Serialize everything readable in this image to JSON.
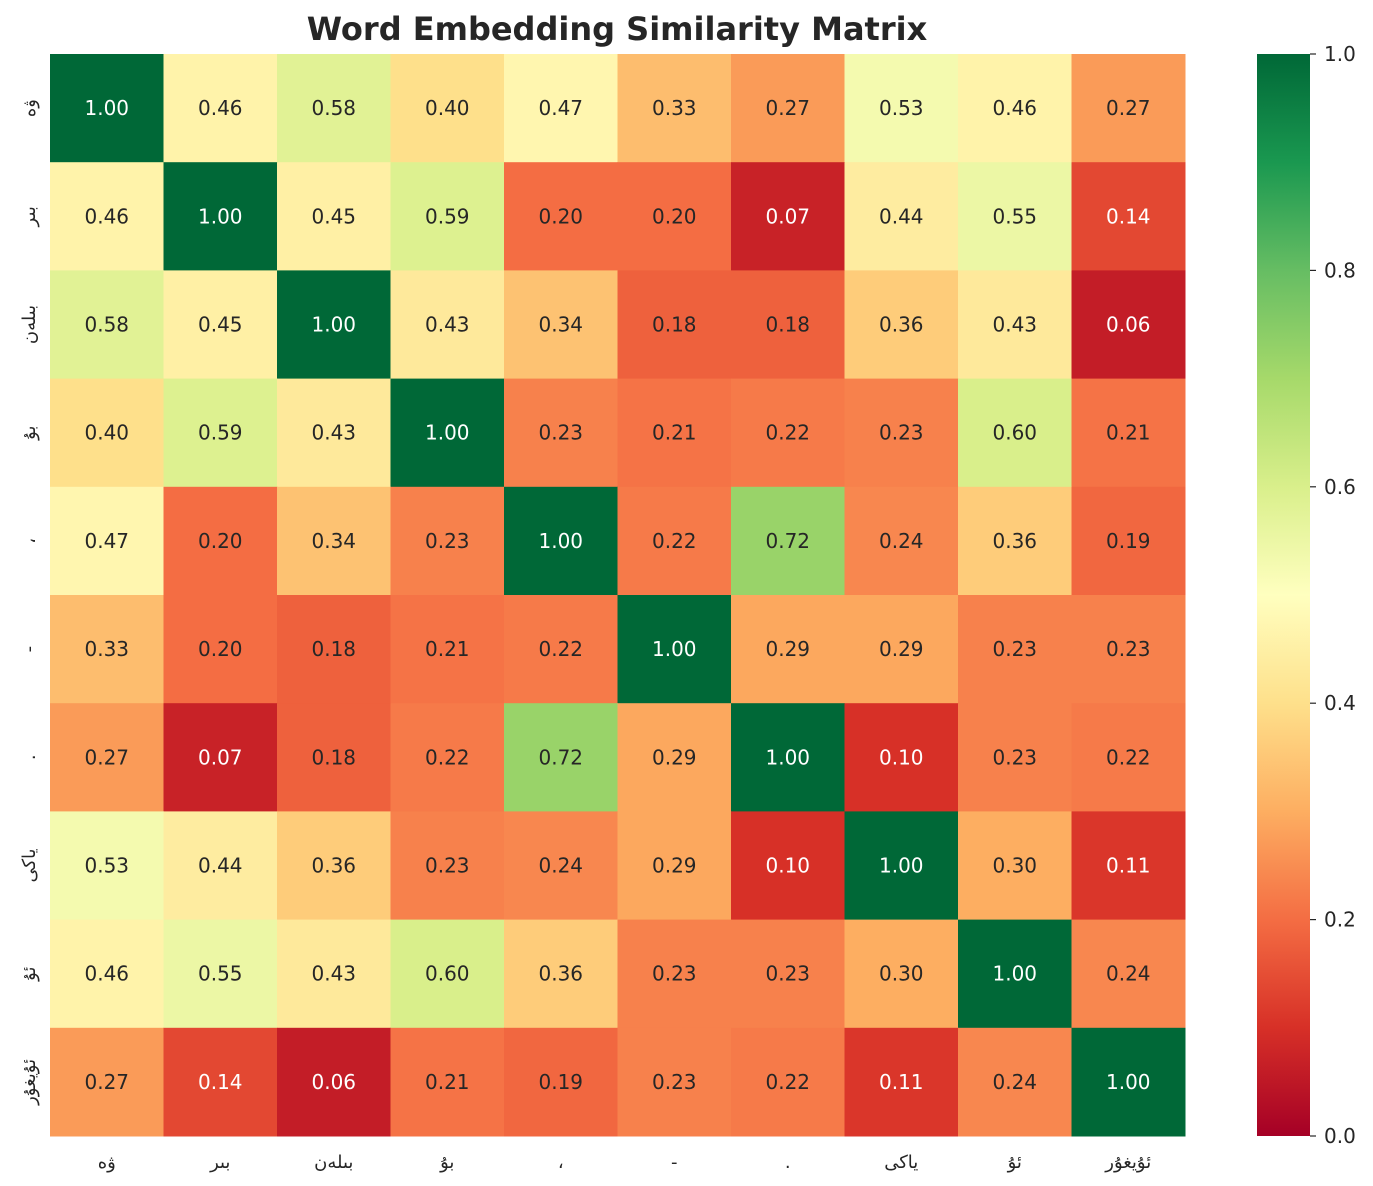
{
  "chart_data": {
    "type": "heatmap",
    "title": "Word Embedding Similarity Matrix",
    "colormap": "RdYlGn",
    "vmin": 0.0,
    "vmax": 1.0,
    "row_labels": [
      "ۋە",
      "بىر",
      "بىلەن",
      "بۇ",
      "،",
      "-",
      ".",
      "ياكى",
      "ئۇ",
      "ئۇيغۇر"
    ],
    "col_labels": [
      "ۋە",
      "بىر",
      "بىلەن",
      "بۇ",
      "،",
      "-",
      ".",
      "ياكى",
      "ئۇ",
      "ئۇيغۇر"
    ],
    "values": [
      [
        1.0,
        0.46,
        0.58,
        0.4,
        0.47,
        0.33,
        0.27,
        0.53,
        0.46,
        0.27
      ],
      [
        0.46,
        1.0,
        0.45,
        0.59,
        0.2,
        0.2,
        0.07,
        0.44,
        0.55,
        0.14
      ],
      [
        0.58,
        0.45,
        1.0,
        0.43,
        0.34,
        0.18,
        0.18,
        0.36,
        0.43,
        0.06
      ],
      [
        0.4,
        0.59,
        0.43,
        1.0,
        0.23,
        0.21,
        0.22,
        0.23,
        0.6,
        0.21
      ],
      [
        0.47,
        0.2,
        0.34,
        0.23,
        1.0,
        0.22,
        0.72,
        0.24,
        0.36,
        0.19
      ],
      [
        0.33,
        0.2,
        0.18,
        0.21,
        0.22,
        1.0,
        0.29,
        0.29,
        0.23,
        0.23
      ],
      [
        0.27,
        0.07,
        0.18,
        0.22,
        0.72,
        0.29,
        1.0,
        0.1,
        0.23,
        0.22
      ],
      [
        0.53,
        0.44,
        0.36,
        0.23,
        0.24,
        0.29,
        0.1,
        1.0,
        0.3,
        0.11
      ],
      [
        0.46,
        0.55,
        0.43,
        0.6,
        0.36,
        0.23,
        0.23,
        0.3,
        1.0,
        0.24
      ],
      [
        0.27,
        0.14,
        0.06,
        0.21,
        0.19,
        0.23,
        0.22,
        0.11,
        0.24,
        1.0
      ]
    ],
    "colorbar_ticks": [
      "0.0",
      "0.2",
      "0.4",
      "0.6",
      "0.8",
      "1.0"
    ],
    "annotate_format": "2 decimals"
  }
}
